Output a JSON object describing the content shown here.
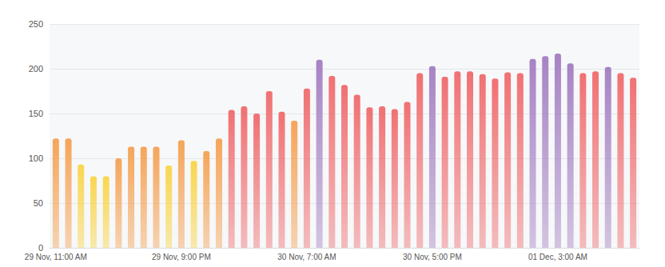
{
  "chart_data": {
    "type": "bar",
    "categories": [
      "29 Nov, 11:00 AM",
      null,
      null,
      null,
      null,
      null,
      null,
      null,
      null,
      null,
      "29 Nov, 9:00 PM",
      null,
      null,
      null,
      null,
      null,
      null,
      null,
      null,
      null,
      "30 Nov, 7:00 AM",
      null,
      null,
      null,
      null,
      null,
      null,
      null,
      null,
      null,
      "30 Nov, 5:00 PM",
      null,
      null,
      null,
      null,
      null,
      null,
      null,
      null,
      null,
      "01 Dec, 3:00 AM",
      null,
      null,
      null,
      null,
      null,
      null
    ],
    "values": [
      122,
      122,
      93,
      80,
      80,
      100,
      113,
      113,
      113,
      92,
      120,
      97,
      108,
      122,
      154,
      158,
      150,
      175,
      152,
      142,
      178,
      210,
      192,
      182,
      171,
      157,
      158,
      155,
      163,
      195,
      203,
      191,
      197,
      197,
      194,
      189,
      196,
      195,
      211,
      214,
      217,
      206,
      195,
      197,
      202,
      195,
      190
    ],
    "colors": [
      "#f5a55a",
      "#f5a55a",
      "#f9d650",
      "#f9d650",
      "#f9d650",
      "#f5a55a",
      "#f5a55a",
      "#f5a55a",
      "#f5a55a",
      "#f9d650",
      "#f5a55a",
      "#f9d650",
      "#f5a55a",
      "#f5a55a",
      "#f07173",
      "#f07173",
      "#f07173",
      "#f07173",
      "#f07173",
      "#f5a55a",
      "#f07173",
      "#a783c4",
      "#f07173",
      "#f07173",
      "#f07173",
      "#f07173",
      "#f07173",
      "#f07173",
      "#f07173",
      "#f07173",
      "#a783c4",
      "#f07173",
      "#f07173",
      "#f07173",
      "#f07173",
      "#f07173",
      "#f07173",
      "#f07173",
      "#a783c4",
      "#a783c4",
      "#a783c4",
      "#a783c4",
      "#f07173",
      "#f07173",
      "#a783c4",
      "#f07173",
      "#f07173"
    ],
    "ylim": [
      0,
      250
    ],
    "yticks": [
      0,
      50,
      100,
      150,
      200,
      250
    ],
    "grid": true
  }
}
